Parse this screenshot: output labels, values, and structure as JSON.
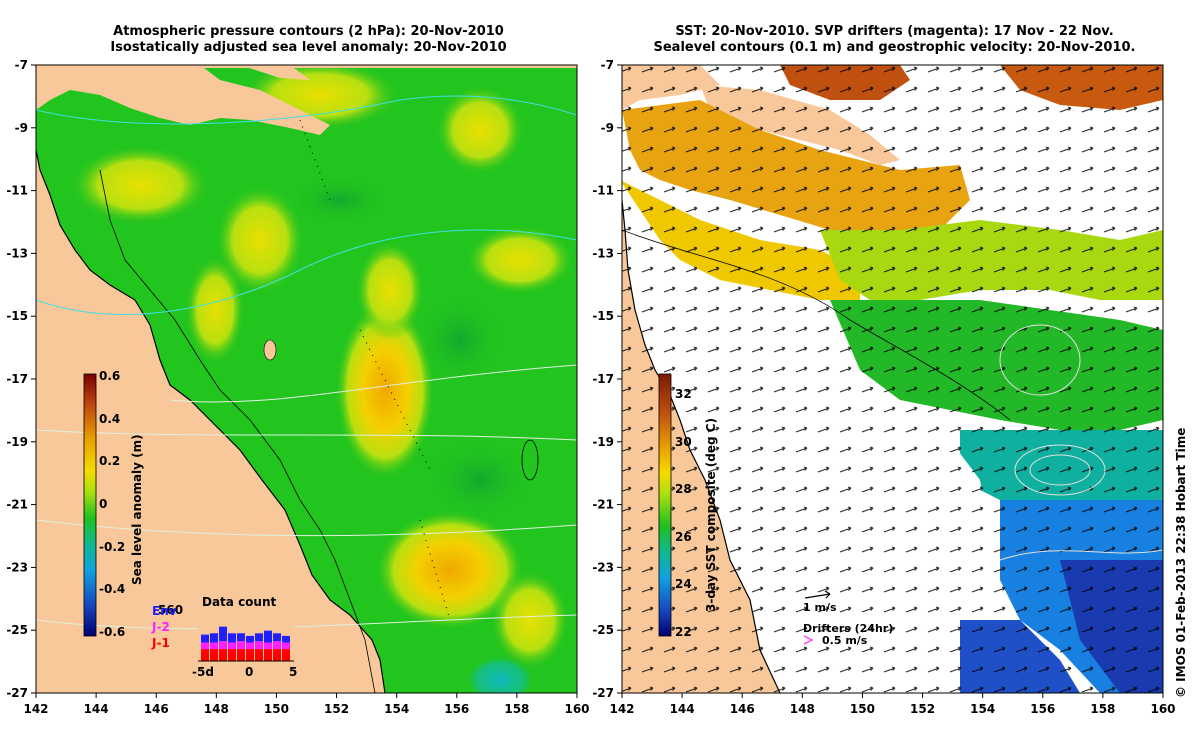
{
  "left_panel": {
    "title_line1": "Atmospheric pressure contours (2 hPa): 20-Nov-2010",
    "title_line2": "Isostatically adjusted sea level anomaly: 20-Nov-2010",
    "y_ticks": [
      "-7",
      "-9",
      "-11",
      "-13",
      "-15",
      "-17",
      "-19",
      "-21",
      "-23",
      "-25",
      "-27"
    ],
    "x_ticks": [
      "142",
      "144",
      "146",
      "148",
      "150",
      "152",
      "154",
      "156",
      "158",
      "160"
    ],
    "colorbar": {
      "title": "Sea level anomaly (m)",
      "ticks": [
        "0.6",
        "0.4",
        "0.2",
        "0",
        "-0.2",
        "-0.4",
        "-0.6"
      ],
      "colors": [
        "#8b0000",
        "#c04010",
        "#e08a00",
        "#ffcc00",
        "#c8e000",
        "#1ea81e",
        "#00b0b0",
        "#1090e0",
        "#1a3ab0",
        "#000080"
      ]
    },
    "data_count": {
      "title": "Data count",
      "max_label": "560",
      "x_labels": [
        "-5d",
        "0",
        "5"
      ],
      "legend": [
        {
          "label": "Env",
          "color": "#2020ff"
        },
        {
          "label": "J-2",
          "color": "#ff20ff"
        },
        {
          "label": "J-1",
          "color": "#ff0000"
        }
      ],
      "bars": [
        {
          "red": 0.45,
          "magenta": 0.25,
          "blue": 0.3
        },
        {
          "red": 0.45,
          "magenta": 0.25,
          "blue": 0.35
        },
        {
          "red": 0.45,
          "magenta": 0.3,
          "blue": 0.55
        },
        {
          "red": 0.45,
          "magenta": 0.25,
          "blue": 0.35
        },
        {
          "red": 0.45,
          "magenta": 0.3,
          "blue": 0.3
        },
        {
          "red": 0.45,
          "magenta": 0.25,
          "blue": 0.25
        },
        {
          "red": 0.45,
          "magenta": 0.3,
          "blue": 0.3
        },
        {
          "red": 0.45,
          "magenta": 0.25,
          "blue": 0.45
        },
        {
          "red": 0.45,
          "magenta": 0.3,
          "blue": 0.3
        },
        {
          "red": 0.45,
          "magenta": 0.25,
          "blue": 0.25
        }
      ]
    }
  },
  "right_panel": {
    "title_line1": "SST: 20-Nov-2010. SVP drifters (magenta): 17 Nov - 22 Nov.",
    "title_line2": "Sealevel contours (0.1 m) and geostrophic velocity: 20-Nov-2010.",
    "y_ticks": [
      "-7",
      "-9",
      "-11",
      "-13",
      "-15",
      "-17",
      "-19",
      "-21",
      "-23",
      "-25",
      "-27"
    ],
    "x_ticks": [
      "142",
      "144",
      "146",
      "148",
      "150",
      "152",
      "154",
      "156",
      "158",
      "160"
    ],
    "colorbar": {
      "title": "3-day SST composite (deg C)",
      "ticks": [
        "32",
        "30",
        "28",
        "26",
        "24",
        "22"
      ],
      "colors": [
        "#7a1a00",
        "#c04010",
        "#e08a00",
        "#ffcc00",
        "#c8e000",
        "#1ea81e",
        "#00b0b0",
        "#1090e0",
        "#1a3ab0",
        "#000080"
      ]
    },
    "velocity_scale": "1 m/s",
    "drifters_label": "Drifters (24hr)",
    "drifters_speed": "0.5 m/s"
  },
  "credit": "© IMOS 01-Feb-2013 22:38 Hobart Time",
  "colors": {
    "land": "#f8c89a",
    "ocean_green": "#22c41e",
    "sst_white": "#ffffff"
  }
}
